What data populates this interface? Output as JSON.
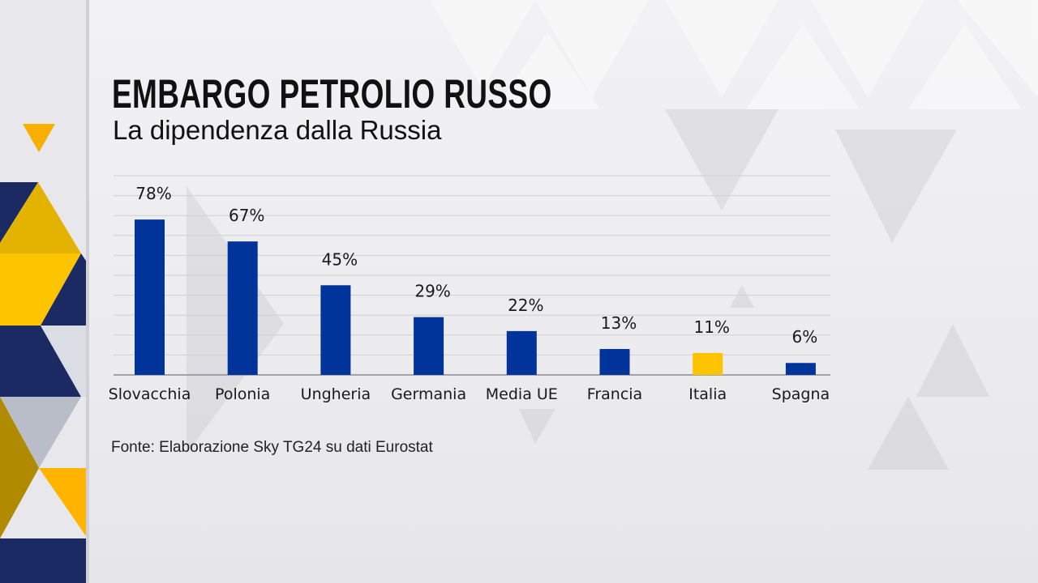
{
  "header": {
    "title": "EMBARGO PETROLIO RUSSO",
    "subtitle": "La dipendenza dalla Russia"
  },
  "source": "Fonte: Elaborazione Sky TG24 su dati Eurostat",
  "colors": {
    "bar": "#00349a",
    "highlight": "#ffc400",
    "navy": "#1b2a63",
    "gold": "#f7b800"
  },
  "chart_data": {
    "type": "bar",
    "categories": [
      "Slovacchia",
      "Polonia",
      "Ungheria",
      "Germania",
      "Media UE",
      "Francia",
      "Italia",
      "Spagna"
    ],
    "values": [
      78,
      67,
      45,
      29,
      22,
      13,
      11,
      6
    ],
    "data_labels": [
      "78%",
      "67%",
      "45%",
      "29%",
      "22%",
      "13%",
      "11%",
      "6%"
    ],
    "highlighted_category": "Italia",
    "title": "EMBARGO PETROLIO RUSSO",
    "subtitle": "La dipendenza dalla Russia",
    "xlabel": "",
    "ylabel": "",
    "ylim": [
      0,
      100
    ],
    "grid": true,
    "unit": "%"
  }
}
